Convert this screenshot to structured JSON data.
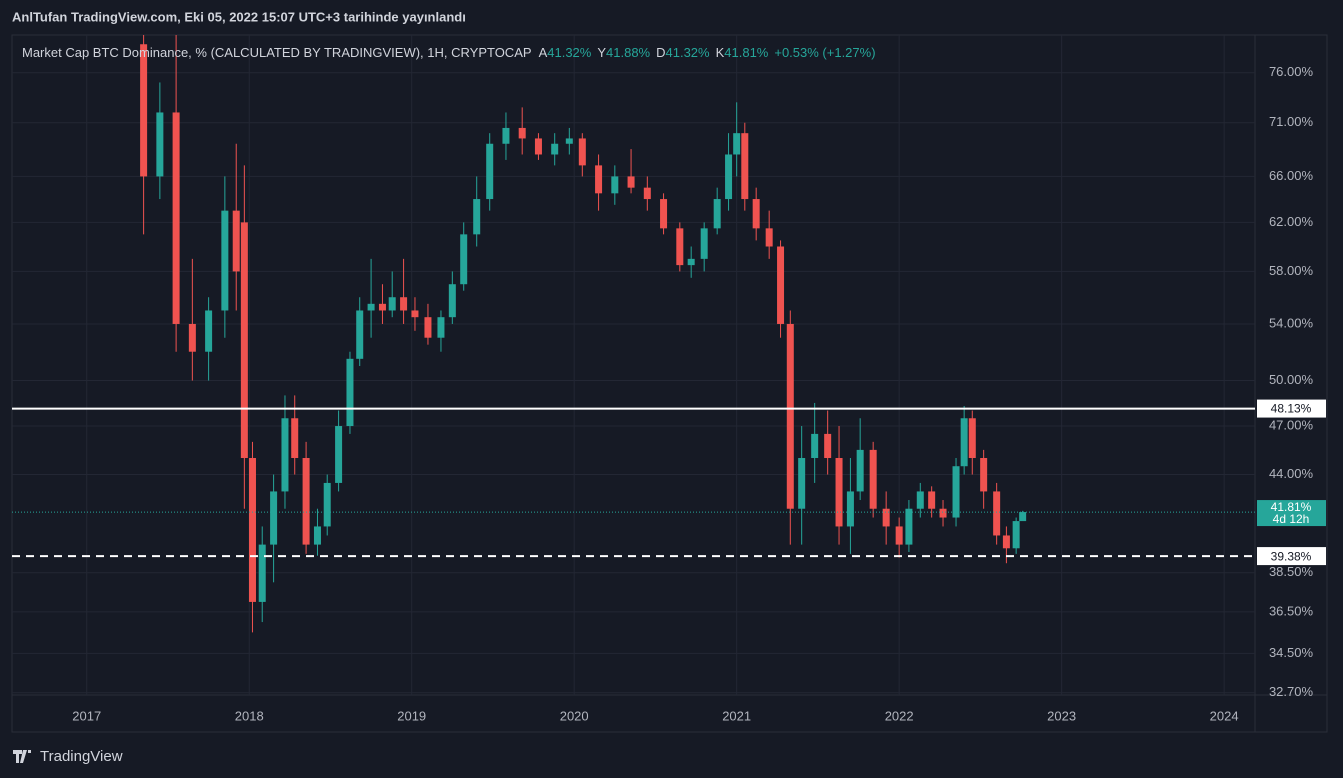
{
  "chart_data": {
    "type": "candlestick",
    "header": "AnlTufan TradingView.com, Eki 05, 2022 15:07 UTC+3 tarihinde yayınlandı",
    "legend_title": "Market Cap BTC Dominance, % (CALCULATED BY TRADINGVIEW), 1H, CRYPTOCAP",
    "ohlc_legend": [
      {
        "key": "A",
        "value": 41.32,
        "label": "41.32%"
      },
      {
        "key": "Y",
        "value": 41.88,
        "label": "41.88%"
      },
      {
        "key": "D",
        "value": 41.32,
        "label": "41.32%"
      },
      {
        "key": "K",
        "value": 41.81,
        "label": "41.81%"
      }
    ],
    "change": "+0.53% (+1.27%)",
    "brand": "TradingView",
    "log_scale": true,
    "up_color": "#26a69a",
    "down_color": "#ef5350",
    "x": [
      2017.35,
      2017.45,
      2017.55,
      2017.65,
      2017.75,
      2017.85,
      2017.92,
      2017.97,
      2018.02,
      2018.08,
      2018.15,
      2018.22,
      2018.28,
      2018.35,
      2018.42,
      2018.48,
      2018.55,
      2018.62,
      2018.68,
      2018.75,
      2018.82,
      2018.88,
      2018.95,
      2019.02,
      2019.1,
      2019.18,
      2019.25,
      2019.32,
      2019.4,
      2019.48,
      2019.58,
      2019.68,
      2019.78,
      2019.88,
      2019.97,
      2020.05,
      2020.15,
      2020.25,
      2020.35,
      2020.45,
      2020.55,
      2020.65,
      2020.72,
      2020.8,
      2020.88,
      2020.95,
      2021.0,
      2021.05,
      2021.12,
      2021.2,
      2021.27,
      2021.33,
      2021.4,
      2021.48,
      2021.56,
      2021.63,
      2021.7,
      2021.76,
      2021.84,
      2021.92,
      2022.0,
      2022.06,
      2022.13,
      2022.2,
      2022.27,
      2022.35,
      2022.4,
      2022.45,
      2022.52,
      2022.6,
      2022.66,
      2022.72,
      2022.76
    ],
    "open": [
      79,
      66,
      72,
      54,
      52,
      55,
      63,
      62,
      45,
      37,
      40,
      43,
      47.5,
      45,
      40,
      41,
      43.5,
      47,
      51.5,
      55,
      55.5,
      55,
      56,
      55,
      54.5,
      53,
      54.5,
      57,
      61,
      64,
      69,
      70.5,
      69.5,
      68,
      69,
      69.5,
      67,
      64.5,
      66,
      65,
      64,
      61.5,
      58.5,
      59,
      61.5,
      64,
      68,
      70,
      64,
      61.5,
      60,
      54,
      42,
      45,
      46.5,
      45,
      41,
      43,
      45.5,
      42,
      41,
      40,
      42,
      43,
      42,
      41.5,
      44.5,
      47.5,
      45,
      43,
      40.5,
      39.8,
      41.3
    ],
    "high": [
      80,
      75,
      80,
      59,
      56,
      66,
      69,
      67,
      46,
      41,
      44,
      49,
      49,
      46,
      42,
      44,
      48,
      52,
      56,
      59,
      57,
      58,
      59,
      56,
      55.5,
      55,
      58,
      62,
      66,
      70,
      72,
      72.5,
      70,
      70,
      70.5,
      70,
      68,
      67,
      68.5,
      66,
      64.5,
      62,
      60,
      62,
      65,
      70,
      73,
      71,
      65,
      63,
      60.5,
      55,
      47,
      48.5,
      48,
      47,
      45,
      47.5,
      46,
      43,
      41.5,
      42.5,
      43.5,
      43.3,
      42.5,
      45,
      48.3,
      48,
      45.5,
      43.5,
      41,
      41.5,
      41.88
    ],
    "low": [
      61,
      64,
      52,
      50,
      50,
      53,
      55,
      42,
      35.5,
      36,
      38,
      42,
      44,
      39.5,
      39.4,
      40.5,
      43,
      46.5,
      51,
      53,
      54,
      54.5,
      54,
      53.5,
      52.5,
      52,
      54,
      56.5,
      60,
      63,
      67.5,
      68,
      67.5,
      67,
      68,
      66,
      63,
      63.5,
      64.5,
      63,
      61,
      58,
      57.5,
      58,
      61,
      63,
      66,
      63,
      60.5,
      59,
      53,
      40,
      40,
      43.5,
      44,
      40,
      39.5,
      42.5,
      41.5,
      40,
      39.3,
      39.6,
      41.5,
      41.5,
      41,
      41,
      44,
      44,
      42,
      40,
      39,
      39.5,
      41.32
    ],
    "close": [
      66,
      72,
      54,
      52,
      55,
      63,
      58,
      45,
      37,
      40,
      43,
      47.5,
      45,
      40,
      41,
      43.5,
      47,
      51.5,
      55,
      55.5,
      55,
      56,
      55,
      54.5,
      53,
      54.5,
      57,
      61,
      64,
      69,
      70.5,
      69.5,
      68,
      69,
      69.5,
      67,
      64.5,
      66,
      65,
      64,
      61.5,
      58.5,
      59,
      61.5,
      64,
      68,
      70,
      64,
      61.5,
      60,
      54,
      42,
      45,
      46.5,
      45,
      41,
      43,
      45.5,
      42,
      41,
      40,
      42,
      43,
      42,
      41.5,
      44.5,
      47.5,
      45,
      43,
      40.5,
      39.8,
      41.3,
      41.81
    ],
    "ylim": [
      32.6,
      80
    ],
    "yticks": [
      {
        "value": 76,
        "label": "76.00%"
      },
      {
        "value": 71,
        "label": "71.00%"
      },
      {
        "value": 66,
        "label": "66.00%"
      },
      {
        "value": 62,
        "label": "62.00%"
      },
      {
        "value": 58,
        "label": "58.00%"
      },
      {
        "value": 54,
        "label": "54.00%"
      },
      {
        "value": 50,
        "label": "50.00%"
      },
      {
        "value": 47,
        "label": "47.00%"
      },
      {
        "value": 44,
        "label": "44.00%"
      },
      {
        "value": 38.5,
        "label": "38.50%"
      },
      {
        "value": 36.5,
        "label": "36.50%"
      },
      {
        "value": 34.5,
        "label": "34.50%"
      },
      {
        "value": 32.7,
        "label": "32.70%"
      }
    ],
    "xlim": [
      2016.54,
      2024.19
    ],
    "xticks": [
      2017,
      2018,
      2019,
      2020,
      2021,
      2022,
      2023,
      2024
    ],
    "grid": true,
    "hlines": [
      {
        "value": 48.13,
        "label": "48.13%",
        "style": "solid"
      },
      {
        "value": 39.38,
        "label": "39.38%",
        "style": "dashed"
      }
    ],
    "last_price": {
      "value": 41.81,
      "label": "41.81%",
      "countdown": "4d 12h"
    }
  }
}
